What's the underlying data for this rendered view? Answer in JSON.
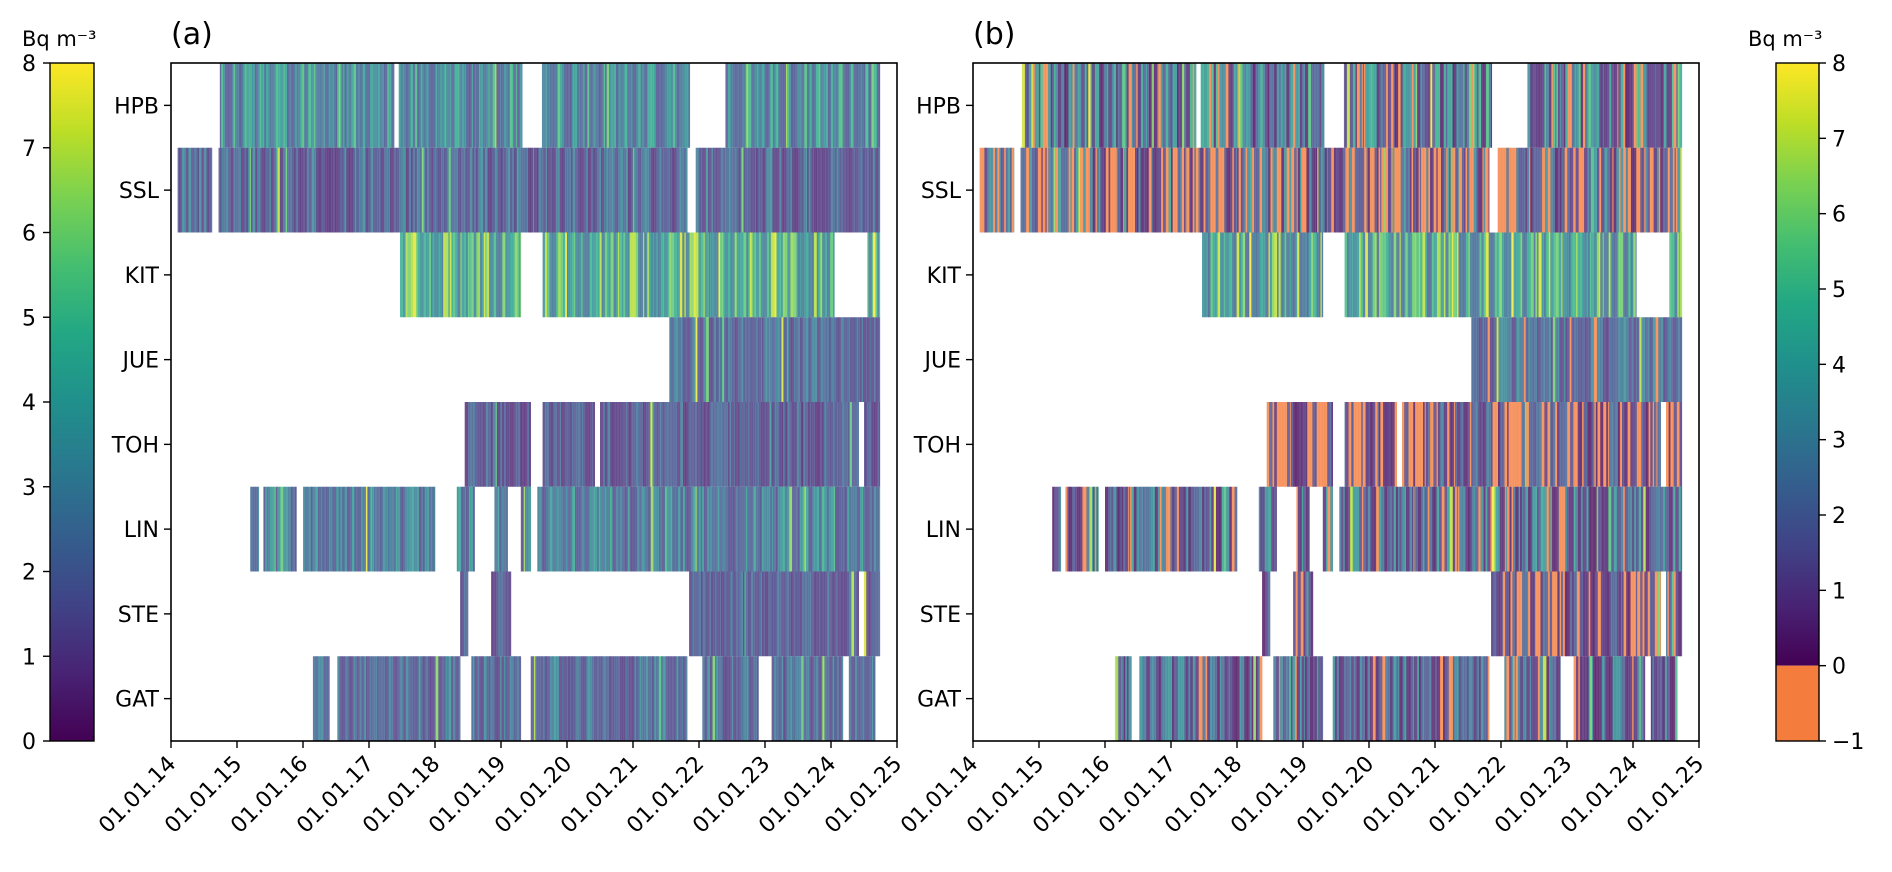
{
  "chart_data": [
    {
      "panel": "(a)",
      "type": "heatmap",
      "title": "(a)",
      "xlabel": "",
      "ylabel": "",
      "x_range": [
        "01.01.14",
        "01.01.25"
      ],
      "x_ticks": [
        "01.01.14",
        "01.01.15",
        "01.01.16",
        "01.01.17",
        "01.01.18",
        "01.01.19",
        "01.01.20",
        "01.01.21",
        "01.01.22",
        "01.01.23",
        "01.01.24",
        "01.01.25"
      ],
      "stations": [
        "GAT",
        "STE",
        "LIN",
        "TOH",
        "JUE",
        "KIT",
        "SSL",
        "HPB"
      ],
      "colormap": "viridis",
      "value_range": [
        0,
        8
      ],
      "units": "Bq m⁻³",
      "series": [
        {
          "name": "HPB",
          "segments": [
            [
              2014.74,
              2017.38
            ],
            [
              2017.45,
              2019.32
            ],
            [
              2019.62,
              2021.86
            ],
            [
              2022.4,
              2024.74
            ]
          ],
          "typical_range": [
            1.5,
            5.5
          ]
        },
        {
          "name": "SSL",
          "segments": [
            [
              2014.1,
              2014.62
            ],
            [
              2014.72,
              2021.82
            ],
            [
              2021.95,
              2024.74
            ]
          ],
          "typical_range": [
            0.6,
            3.5
          ]
        },
        {
          "name": "KIT",
          "segments": [
            [
              2017.47,
              2019.3
            ],
            [
              2019.63,
              2024.05
            ],
            [
              2024.55,
              2024.74
            ]
          ],
          "typical_range": [
            2.5,
            7.5
          ]
        },
        {
          "name": "JUE",
          "segments": [
            [
              2021.55,
              2024.74
            ]
          ],
          "typical_range": [
            1.0,
            3.5
          ]
        },
        {
          "name": "TOH",
          "segments": [
            [
              2018.45,
              2019.45
            ],
            [
              2019.63,
              2020.42
            ],
            [
              2020.5,
              2024.42
            ],
            [
              2024.5,
              2024.74
            ]
          ],
          "typical_range": [
            0.6,
            2.8
          ]
        },
        {
          "name": "LIN",
          "segments": [
            [
              2015.2,
              2015.33
            ],
            [
              2015.4,
              2015.9
            ],
            [
              2016.0,
              2018.0
            ],
            [
              2018.33,
              2018.6
            ],
            [
              2018.9,
              2019.1
            ],
            [
              2019.3,
              2019.45
            ],
            [
              2019.55,
              2024.74
            ]
          ],
          "typical_range": [
            1.2,
            4.5
          ]
        },
        {
          "name": "STE",
          "segments": [
            [
              2018.38,
              2018.5
            ],
            [
              2018.85,
              2019.15
            ],
            [
              2021.85,
              2024.42
            ],
            [
              2024.5,
              2024.74
            ]
          ],
          "typical_range": [
            0.8,
            2.6
          ]
        },
        {
          "name": "GAT",
          "segments": [
            [
              2016.15,
              2016.4
            ],
            [
              2016.52,
              2018.38
            ],
            [
              2018.55,
              2019.3
            ],
            [
              2019.45,
              2021.82
            ],
            [
              2022.05,
              2022.9
            ],
            [
              2023.1,
              2024.18
            ],
            [
              2024.27,
              2024.67
            ]
          ],
          "typical_range": [
            1.0,
            3.8
          ]
        }
      ],
      "colorbar": {
        "title": "Bq m⁻³",
        "ticks": [
          "0",
          "1",
          "2",
          "3",
          "4",
          "5",
          "6",
          "7",
          "8"
        ],
        "range": [
          0,
          8
        ],
        "placement": "left"
      }
    },
    {
      "panel": "(b)",
      "type": "heatmap",
      "title": "(b)",
      "xlabel": "",
      "ylabel": "",
      "x_range": [
        "01.01.14",
        "01.01.25"
      ],
      "x_ticks": [
        "01.01.14",
        "01.01.15",
        "01.01.16",
        "01.01.17",
        "01.01.18",
        "01.01.19",
        "01.01.20",
        "01.01.21",
        "01.01.22",
        "01.01.23",
        "01.01.24",
        "01.01.25"
      ],
      "stations": [
        "GAT",
        "STE",
        "LIN",
        "TOH",
        "JUE",
        "KIT",
        "SSL",
        "HPB"
      ],
      "colormap": "viridis with below-zero bin in orange",
      "value_range": [
        -1,
        8
      ],
      "units": "Bq m⁻³",
      "negative_color": "#f47c3c",
      "series": [
        {
          "name": "HPB",
          "segments": [
            [
              2014.74,
              2017.38
            ],
            [
              2017.45,
              2019.32
            ],
            [
              2019.62,
              2021.86
            ],
            [
              2022.4,
              2024.74
            ]
          ],
          "typical_range": [
            -1,
            5.5
          ],
          "negative_fraction": 0.12
        },
        {
          "name": "SSL",
          "segments": [
            [
              2014.1,
              2014.62
            ],
            [
              2014.72,
              2021.82
            ],
            [
              2021.95,
              2024.74
            ]
          ],
          "typical_range": [
            -1,
            4
          ],
          "negative_fraction": 0.35
        },
        {
          "name": "KIT",
          "segments": [
            [
              2017.47,
              2019.3
            ],
            [
              2019.63,
              2024.05
            ],
            [
              2024.55,
              2024.74
            ]
          ],
          "typical_range": [
            2,
            7.5
          ],
          "negative_fraction": 0.0
        },
        {
          "name": "JUE",
          "segments": [
            [
              2021.55,
              2024.74
            ]
          ],
          "typical_range": [
            1,
            3.5
          ],
          "negative_fraction": 0.03
        },
        {
          "name": "TOH",
          "segments": [
            [
              2018.45,
              2019.45
            ],
            [
              2019.63,
              2020.42
            ],
            [
              2020.5,
              2024.42
            ],
            [
              2024.5,
              2024.74
            ]
          ],
          "typical_range": [
            -1,
            2.8
          ],
          "negative_fraction": 0.35
        },
        {
          "name": "LIN",
          "segments": [
            [
              2015.2,
              2015.33
            ],
            [
              2015.4,
              2015.9
            ],
            [
              2016.0,
              2018.0
            ],
            [
              2018.33,
              2018.6
            ],
            [
              2018.9,
              2019.1
            ],
            [
              2019.3,
              2019.45
            ],
            [
              2019.55,
              2024.74
            ]
          ],
          "typical_range": [
            -1,
            4.5
          ],
          "negative_fraction": 0.08
        },
        {
          "name": "STE",
          "segments": [
            [
              2018.38,
              2018.5
            ],
            [
              2018.85,
              2019.15
            ],
            [
              2021.85,
              2024.42
            ],
            [
              2024.5,
              2024.74
            ]
          ],
          "typical_range": [
            -1,
            2.6
          ],
          "negative_fraction": 0.2
        },
        {
          "name": "GAT",
          "segments": [
            [
              2016.15,
              2016.4
            ],
            [
              2016.52,
              2018.38
            ],
            [
              2018.55,
              2019.3
            ],
            [
              2019.45,
              2021.82
            ],
            [
              2022.05,
              2022.9
            ],
            [
              2023.1,
              2024.18
            ],
            [
              2024.27,
              2024.67
            ]
          ],
          "typical_range": [
            -1,
            3.8
          ],
          "negative_fraction": 0.1
        }
      ],
      "colorbar": {
        "title": "Bq m⁻³",
        "ticks": [
          "−1",
          "0",
          "1",
          "2",
          "3",
          "4",
          "5",
          "6",
          "7",
          "8"
        ],
        "range": [
          -1,
          8
        ],
        "placement": "right"
      }
    }
  ]
}
